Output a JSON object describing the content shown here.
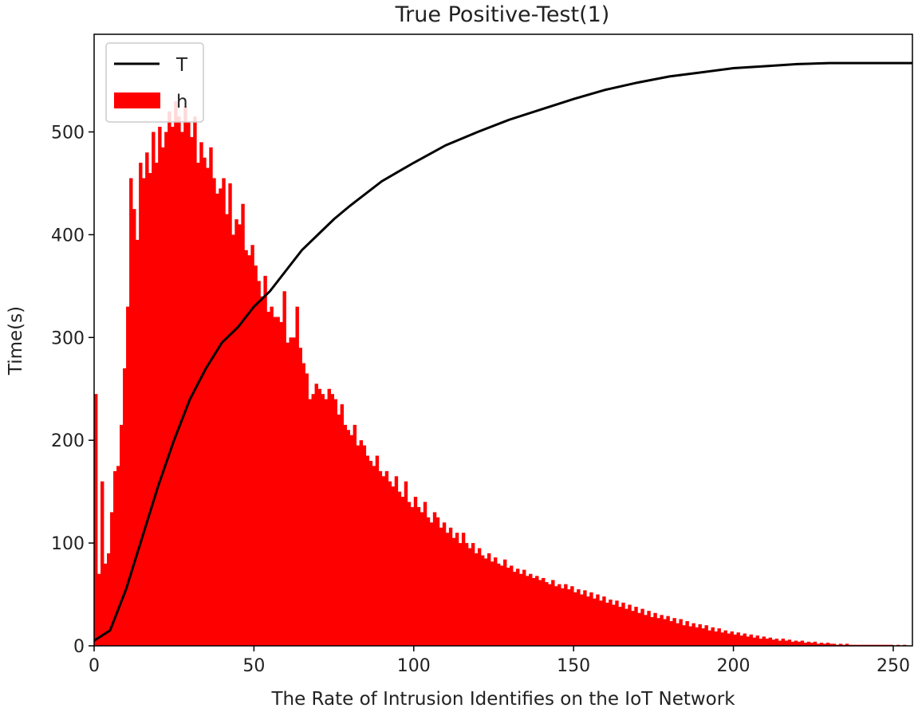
{
  "chart_data": {
    "type": "bar",
    "title": "True Positive-Test(1)",
    "xlabel": "The Rate of Intrusion Identifies on the IoT Network",
    "ylabel": "Time(s)",
    "xlim": [
      0,
      256
    ],
    "ylim": [
      0,
      595
    ],
    "xticks": [
      0,
      50,
      100,
      150,
      200,
      250
    ],
    "yticks": [
      0,
      100,
      200,
      300,
      400,
      500
    ],
    "grid": false,
    "legend": {
      "position": "top-left",
      "entries": [
        {
          "label": "T",
          "kind": "line",
          "color": "#000000"
        },
        {
          "label": "h",
          "kind": "bar",
          "color": "#ff0000"
        }
      ]
    },
    "series": [
      {
        "name": "h",
        "type": "bar",
        "color": "#ff0000",
        "bin_width": 1,
        "x_start": 0,
        "values": [
          245,
          70,
          160,
          80,
          90,
          130,
          170,
          175,
          215,
          270,
          330,
          455,
          425,
          395,
          470,
          455,
          480,
          460,
          500,
          470,
          505,
          485,
          500,
          520,
          505,
          530,
          515,
          500,
          525,
          510,
          495,
          515,
          470,
          490,
          475,
          465,
          485,
          455,
          440,
          445,
          455,
          420,
          450,
          400,
          415,
          410,
          430,
          385,
          380,
          390,
          370,
          355,
          340,
          360,
          325,
          330,
          320,
          320,
          315,
          345,
          295,
          300,
          300,
          330,
          290,
          275,
          265,
          240,
          245,
          255,
          250,
          245,
          240,
          250,
          245,
          240,
          225,
          235,
          215,
          210,
          205,
          215,
          195,
          200,
          195,
          185,
          180,
          175,
          185,
          170,
          165,
          170,
          160,
          155,
          165,
          150,
          145,
          160,
          140,
          135,
          145,
          135,
          130,
          140,
          125,
          120,
          130,
          125,
          115,
          120,
          110,
          115,
          105,
          110,
          100,
          110,
          100,
          95,
          100,
          90,
          95,
          88,
          85,
          90,
          82,
          86,
          80,
          78,
          84,
          76,
          78,
          72,
          75,
          70,
          74,
          68,
          70,
          66,
          68,
          64,
          66,
          62,
          60,
          64,
          58,
          60,
          56,
          60,
          55,
          58,
          52,
          55,
          50,
          54,
          48,
          52,
          46,
          50,
          44,
          48,
          42,
          45,
          40,
          44,
          38,
          42,
          36,
          40,
          34,
          38,
          32,
          36,
          30,
          34,
          28,
          32,
          27,
          30,
          26,
          29,
          24,
          27,
          22,
          26,
          20,
          24,
          19,
          22,
          18,
          21,
          17,
          20,
          15,
          18,
          14,
          17,
          13,
          15,
          12,
          14,
          11,
          13,
          10,
          12,
          9,
          11,
          8,
          10,
          7,
          9,
          7,
          8,
          6,
          7,
          5,
          7,
          5,
          6,
          4,
          5,
          4,
          5,
          3,
          4,
          3,
          4,
          2,
          3,
          2,
          3,
          2,
          2,
          1,
          2,
          1,
          2,
          1,
          1,
          1,
          1,
          1,
          1,
          1,
          1,
          1,
          1,
          1,
          1,
          1,
          1,
          0,
          1,
          0,
          1,
          0,
          0,
          0,
          0
        ]
      },
      {
        "name": "T",
        "type": "line",
        "color": "#000000",
        "x": [
          0,
          5,
          10,
          15,
          20,
          25,
          30,
          35,
          40,
          45,
          50,
          55,
          60,
          65,
          70,
          75,
          80,
          90,
          100,
          110,
          120,
          130,
          140,
          150,
          160,
          170,
          180,
          190,
          200,
          210,
          220,
          230,
          240,
          250,
          256
        ],
        "y": [
          5,
          15,
          55,
          105,
          155,
          200,
          240,
          270,
          295,
          310,
          330,
          345,
          365,
          385,
          400,
          415,
          428,
          452,
          470,
          487,
          500,
          512,
          522,
          532,
          541,
          548,
          554,
          558,
          562,
          564,
          566,
          567,
          567,
          567,
          567
        ]
      }
    ]
  }
}
